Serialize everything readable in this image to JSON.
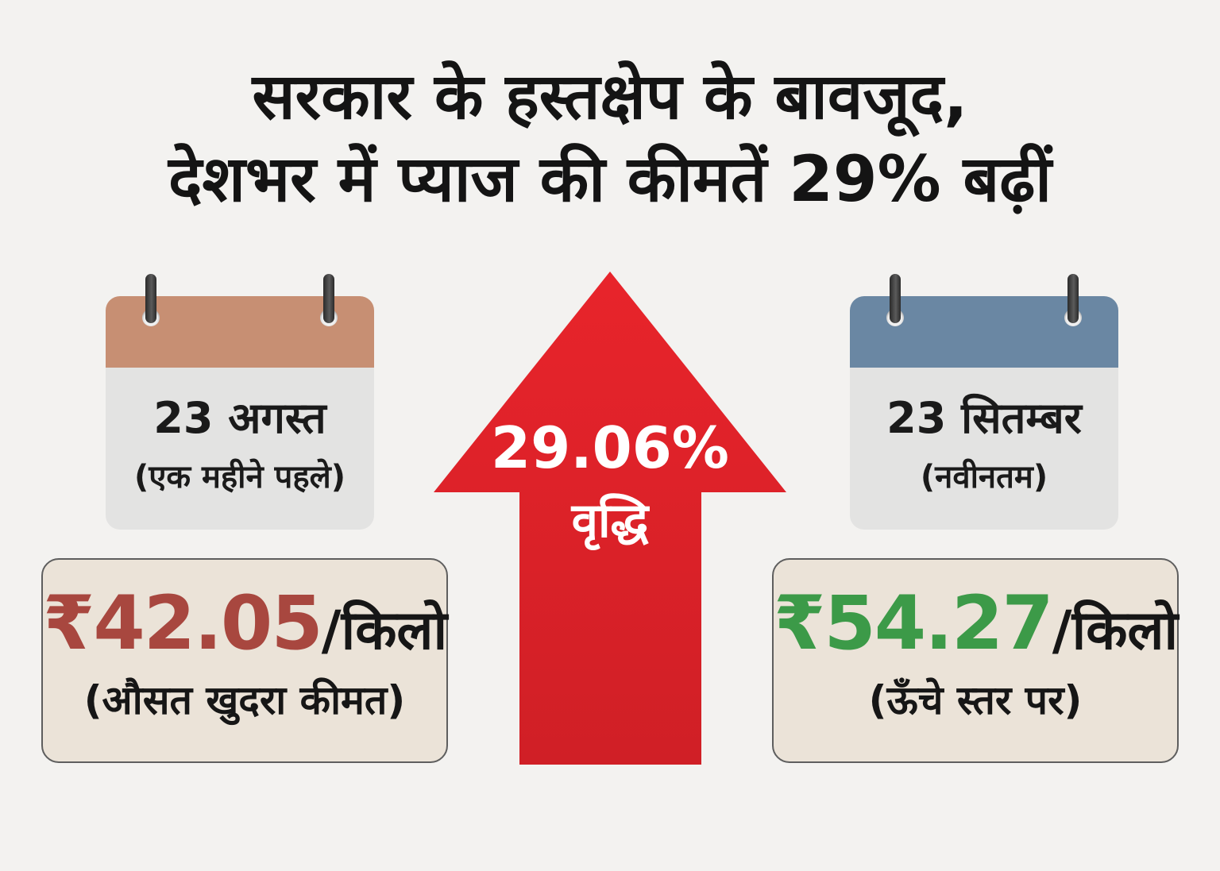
{
  "headline": {
    "line1": "सरकार के हस्तक्षेप के बावजूद,",
    "line2": "देशभर में प्याज की कीमतें 29% बढ़ीं"
  },
  "left": {
    "date": "23 अगस्त",
    "date_note": "(एक महीने पहले)",
    "price": "₹42.05",
    "unit": "/किलो",
    "price_note": "(औसत खुदरा कीमत)",
    "calendar_color": "#c78f73",
    "price_color": "#a8473f"
  },
  "center": {
    "percent": "29.06%",
    "label": "वृद्धि",
    "arrow_color": "#dd2128"
  },
  "right": {
    "date": "23 सितम्बर",
    "date_note": "(नवीनतम)",
    "price": "₹54.27",
    "unit": "/किलो",
    "price_note": "(ऊँचे स्तर पर)",
    "calendar_color": "#6a87a3",
    "price_color": "#3c9a48"
  }
}
